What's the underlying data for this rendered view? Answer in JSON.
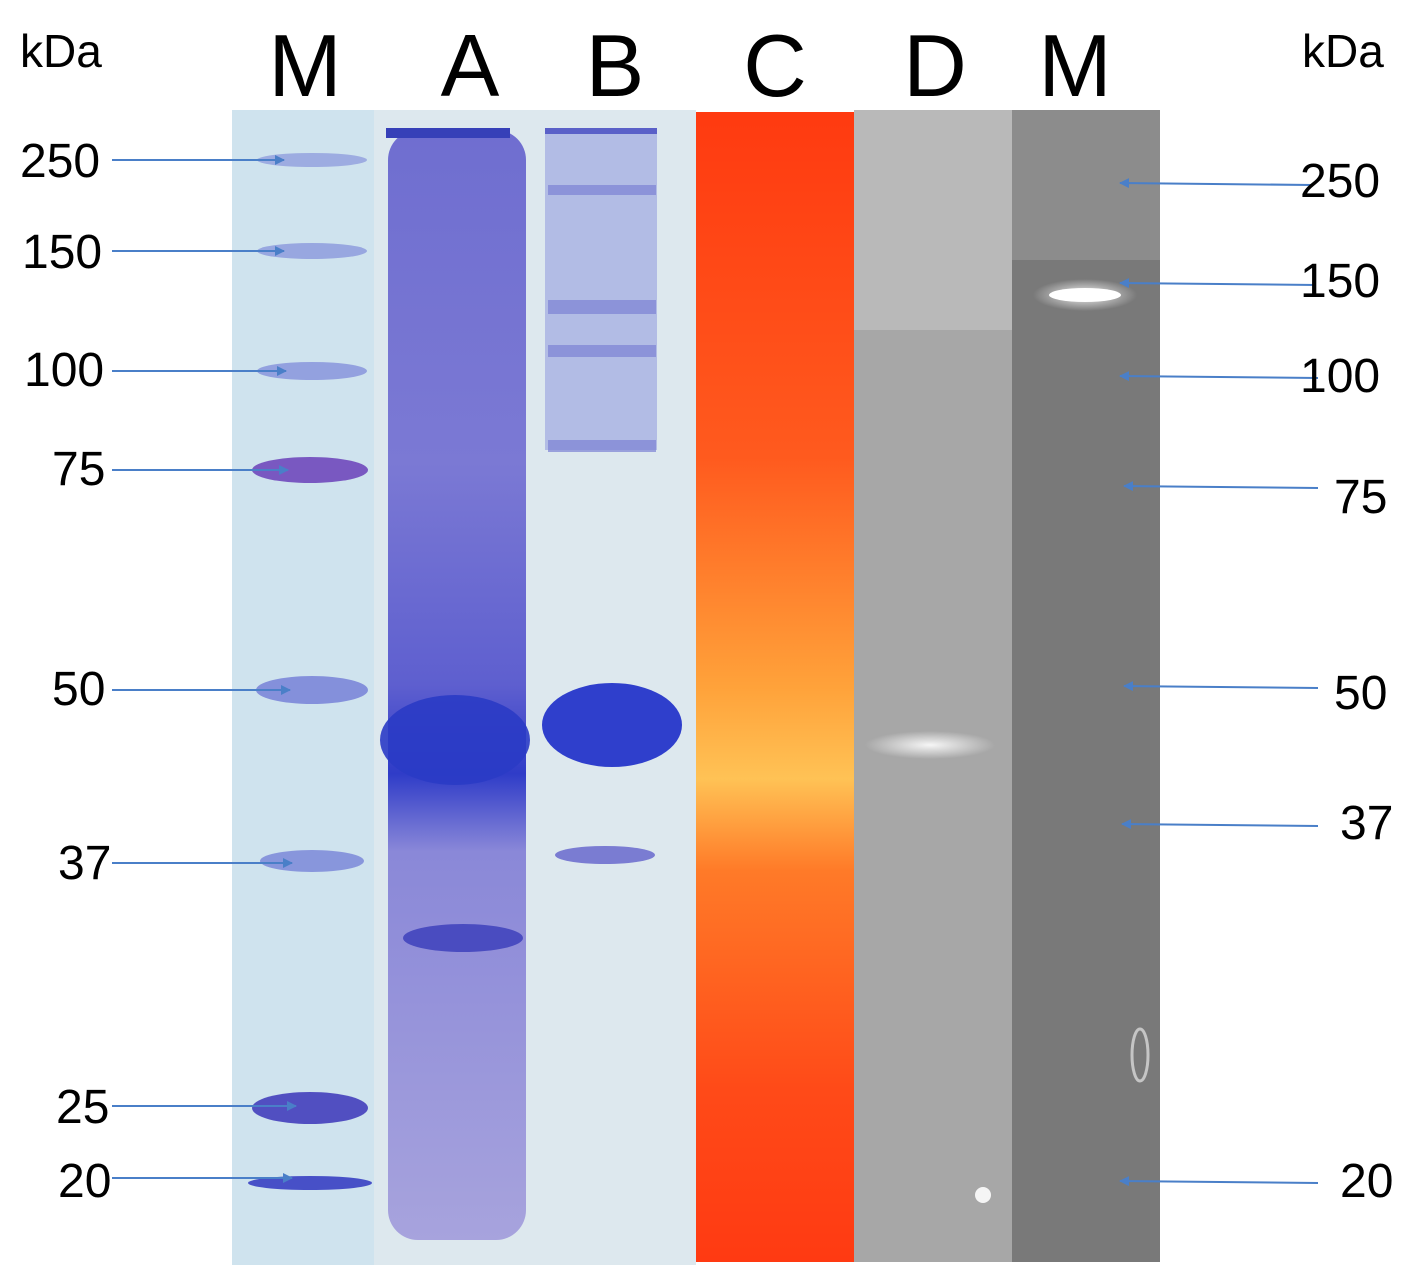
{
  "unit_left": "kDa",
  "unit_right": "kDa",
  "lanes": [
    "M",
    "A",
    "B",
    "C",
    "D",
    "M"
  ],
  "markers_left": [
    "250",
    "150",
    "100",
    "75",
    "50",
    "37",
    "25",
    "20"
  ],
  "markers_right": [
    "250",
    "150",
    "100",
    "75",
    "50",
    "37",
    "20"
  ]
}
